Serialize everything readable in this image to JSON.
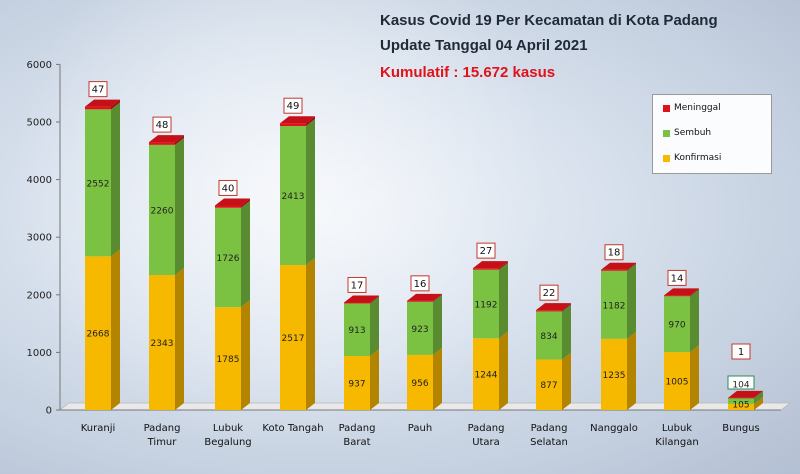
{
  "title": "Kasus Covid 19 Per Kecamatan di Kota Padang",
  "subtitle": "Update Tanggal  04 April 2021",
  "cumulative": "Kumulatif : 15.672 kasus",
  "legend": [
    {
      "name": "Meninggal",
      "color": "#e0121a"
    },
    {
      "name": "Sembuh",
      "color": "#7cc242"
    },
    {
      "name": "Konfirmasi",
      "color": "#f7b800"
    }
  ],
  "chart_data": {
    "type": "bar",
    "stacked": true,
    "categories": [
      [
        "Kuranji"
      ],
      [
        "Padang",
        "Timur"
      ],
      [
        "Lubuk",
        "Begalung"
      ],
      [
        "Koto Tangah"
      ],
      [
        "Padang",
        "Barat"
      ],
      [
        "Pauh"
      ],
      [
        "Padang",
        "Utara"
      ],
      [
        "Padang",
        "Selatan"
      ],
      [
        "Nanggalo"
      ],
      [
        "Lubuk",
        "Kilangan"
      ],
      [
        "Bungus"
      ]
    ],
    "series": [
      {
        "name": "Konfirmasi",
        "values": [
          2668,
          2343,
          1785,
          2517,
          937,
          956,
          1244,
          877,
          1235,
          1005,
          105
        ]
      },
      {
        "name": "Sembuh",
        "values": [
          2552,
          2260,
          1726,
          2413,
          913,
          923,
          1192,
          834,
          1182,
          970,
          104
        ]
      },
      {
        "name": "Meninggal",
        "values": [
          47,
          48,
          40,
          49,
          17,
          16,
          27,
          22,
          18,
          14,
          1
        ]
      }
    ],
    "ylim": [
      0,
      6000
    ],
    "yticks": [
      "0",
      "1000",
      "2000",
      "3000",
      "4000",
      "5000",
      "6000"
    ],
    "legend_position": "top-right"
  }
}
